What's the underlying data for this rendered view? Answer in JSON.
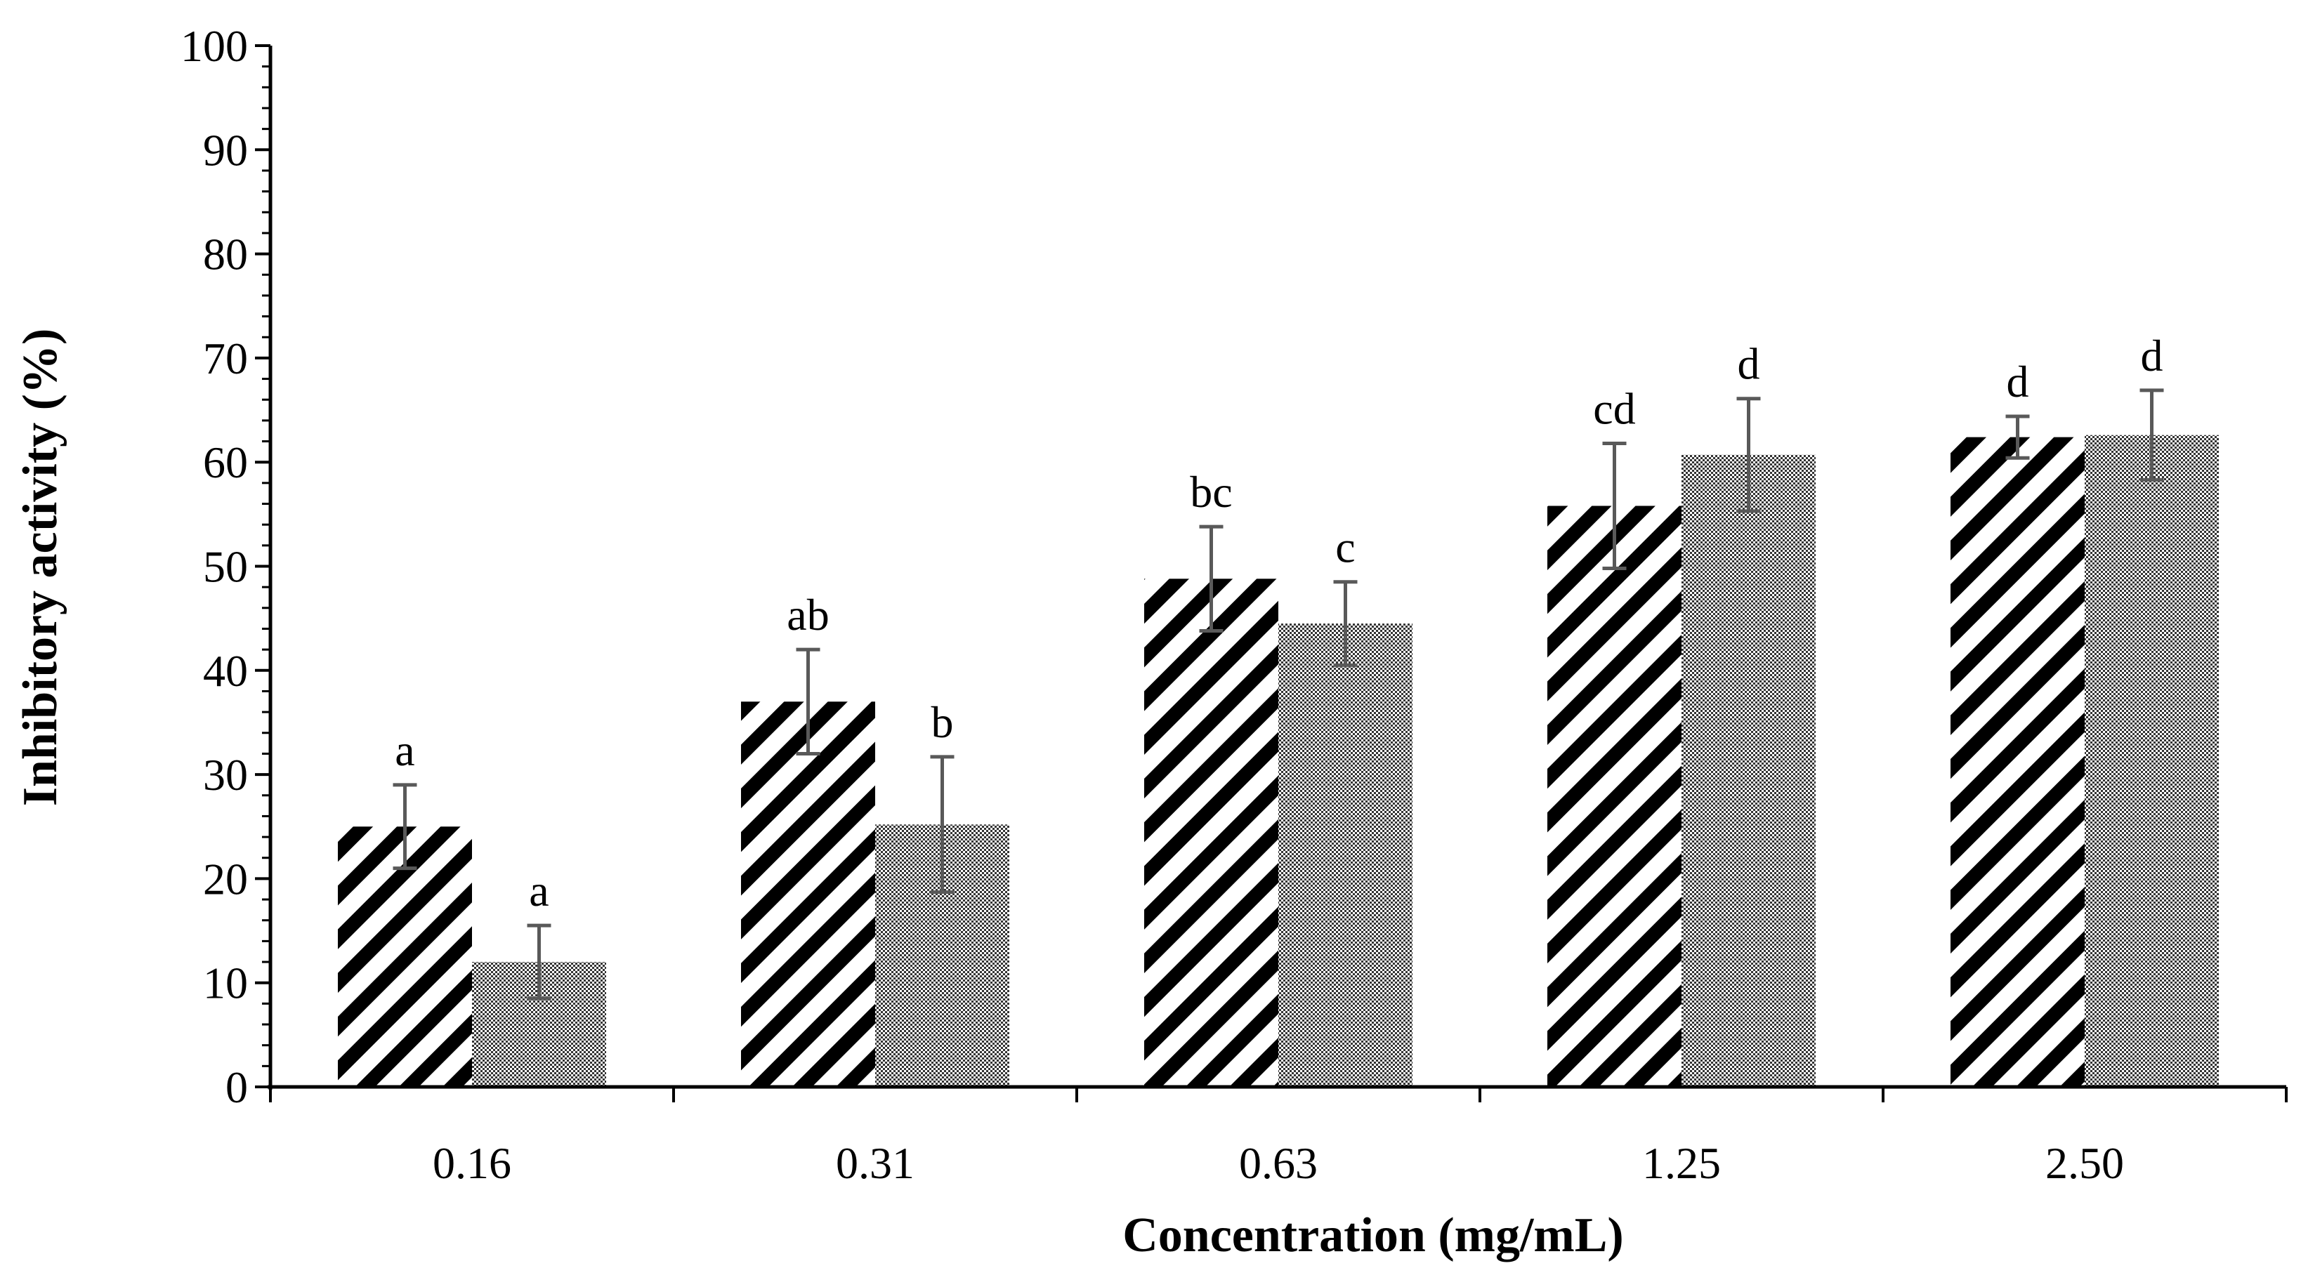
{
  "chart_data": {
    "type": "bar",
    "title": "",
    "xlabel": "Concentration (mg/mL)",
    "ylabel": "Inhibitory  activity (%)",
    "ylim": [
      0,
      100
    ],
    "yticks": [
      0,
      10,
      20,
      30,
      40,
      50,
      60,
      70,
      80,
      90,
      100
    ],
    "ytick_labels": [
      "0",
      "10",
      "20",
      "30",
      "40",
      "50",
      "60",
      "70",
      "80",
      "90",
      "100"
    ],
    "minor_tick_step": 2,
    "grid": false,
    "legend": "none",
    "categories": [
      "0.16",
      "0.31",
      "0.63",
      "1.25",
      "2.50"
    ],
    "series": [
      {
        "name": "series-1",
        "pattern": "diagonal-stripes",
        "values": [
          25,
          37,
          48.8,
          55.8,
          62.4
        ],
        "errors": [
          4,
          5,
          5,
          6,
          2
        ],
        "labels": [
          "a",
          "ab",
          "bc",
          "cd",
          "d"
        ]
      },
      {
        "name": "series-2",
        "pattern": "checkered",
        "values": [
          12,
          25.2,
          44.5,
          60.7,
          62.6
        ],
        "errors": [
          3.5,
          6.5,
          4,
          5.4,
          4.3
        ],
        "labels": [
          "a",
          "b",
          "c",
          "d",
          "d"
        ]
      }
    ],
    "colors": {
      "bar_dark": "#000000",
      "bar_light": "#ffffff",
      "error_bar": "#595959",
      "axis": "#000000"
    }
  }
}
